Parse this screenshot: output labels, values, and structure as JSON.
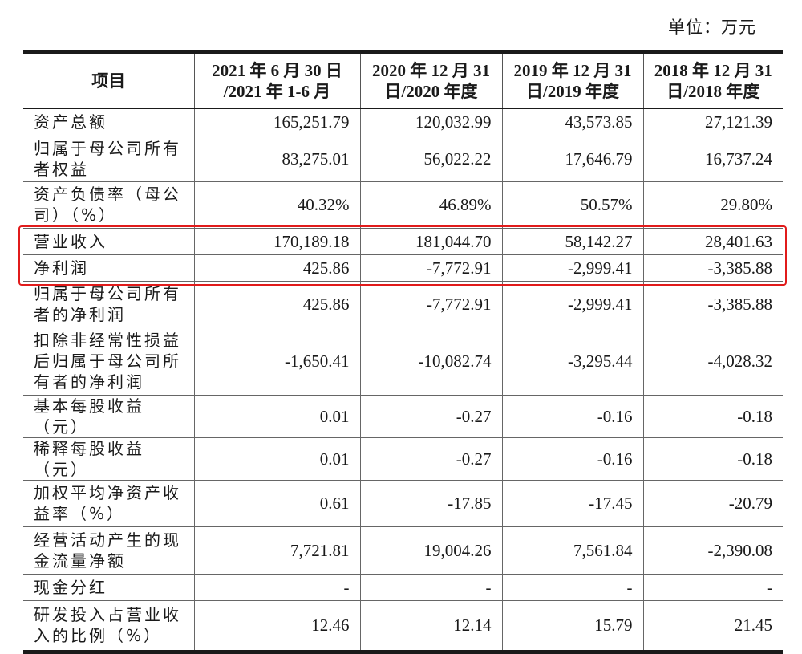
{
  "unit_label": "单位：万元",
  "table": {
    "headers": [
      "项目",
      "2021 年 6 月 30 日\n/2021 年 1-6 月",
      "2020 年 12 月 31\n日/2020 年度",
      "2019 年 12 月 31\n日/2019 年度",
      "2018 年 12 月 31\n日/2018 年度"
    ],
    "rows": [
      {
        "label": "资产总额",
        "values": [
          "165,251.79",
          "120,032.99",
          "43,573.85",
          "27,121.39"
        ]
      },
      {
        "label": "归属于母公司所有者权益",
        "values": [
          "83,275.01",
          "56,022.22",
          "17,646.79",
          "16,737.24"
        ]
      },
      {
        "label": "资产负债率（母公司）（%）",
        "values": [
          "40.32%",
          "46.89%",
          "50.57%",
          "29.80%"
        ]
      },
      {
        "label": "营业收入",
        "values": [
          "170,189.18",
          "181,044.70",
          "58,142.27",
          "28,401.63"
        ]
      },
      {
        "label": "净利润",
        "values": [
          "425.86",
          "-7,772.91",
          "-2,999.41",
          "-3,385.88"
        ]
      },
      {
        "label": "归属于母公司所有者的净利润",
        "values": [
          "425.86",
          "-7,772.91",
          "-2,999.41",
          "-3,385.88"
        ]
      },
      {
        "label": "扣除非经常性损益后归属于母公司所有者的净利润",
        "values": [
          "-1,650.41",
          "-10,082.74",
          "-3,295.44",
          "-4,028.32"
        ]
      },
      {
        "label": "基本每股收益（元）",
        "values": [
          "0.01",
          "-0.27",
          "-0.16",
          "-0.18"
        ]
      },
      {
        "label": "稀释每股收益（元）",
        "values": [
          "0.01",
          "-0.27",
          "-0.16",
          "-0.18"
        ]
      },
      {
        "label": "加权平均净资产收益率（%）",
        "values": [
          "0.61",
          "-17.85",
          "-17.45",
          "-20.79"
        ]
      },
      {
        "label": "经营活动产生的现金流量净额",
        "values": [
          "7,721.81",
          "19,004.26",
          "7,561.84",
          "-2,390.08"
        ]
      },
      {
        "label": "现金分红",
        "values": [
          "-",
          "-",
          "-",
          "-"
        ]
      },
      {
        "label": "研发投入占营业收入的比例（%）",
        "values": [
          "12.46",
          "12.14",
          "15.79",
          "21.45"
        ]
      }
    ]
  },
  "highlight_color": "#e11b1b",
  "chart_data": {
    "type": "table",
    "columns": [
      "项目",
      "2021 年 6 月 30 日/2021 年 1-6 月",
      "2020 年 12 月 31 日/2020 年度",
      "2019 年 12 月 31 日/2019 年度",
      "2018 年 12 月 31 日/2018 年度"
    ],
    "highlighted_rows": [
      "营业收入",
      "净利润"
    ]
  }
}
